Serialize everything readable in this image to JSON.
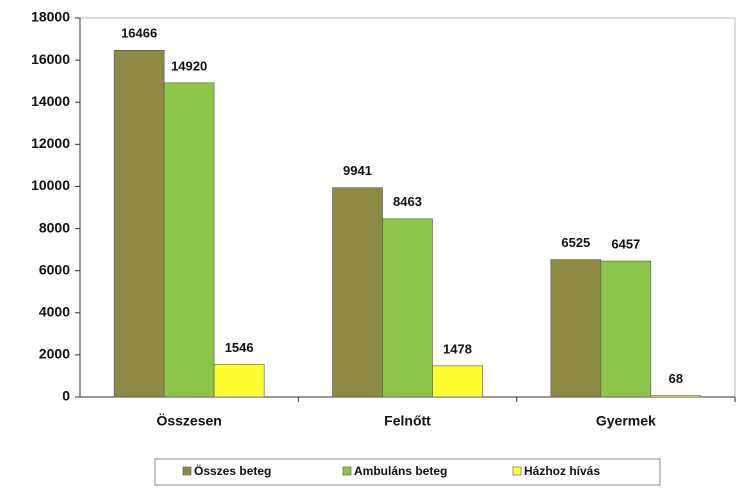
{
  "chart_data": {
    "type": "bar",
    "categories": [
      "Összesen",
      "Felnőtt",
      "Gyermek"
    ],
    "series": [
      {
        "name": "Összes beteg",
        "color": "#8c8a45",
        "values": [
          16466,
          9941,
          6525
        ]
      },
      {
        "name": "Ambuláns beteg",
        "color": "#8dc44a",
        "values": [
          14920,
          8463,
          6457
        ]
      },
      {
        "name": "Házhoz hívás",
        "color": "#ffff33",
        "values": [
          1546,
          1478,
          68
        ]
      }
    ],
    "ylim": [
      0,
      18000
    ],
    "yticks": [
      0,
      2000,
      4000,
      6000,
      8000,
      10000,
      12000,
      14000,
      16000,
      18000
    ],
    "grid": false,
    "legend": "bottom"
  }
}
